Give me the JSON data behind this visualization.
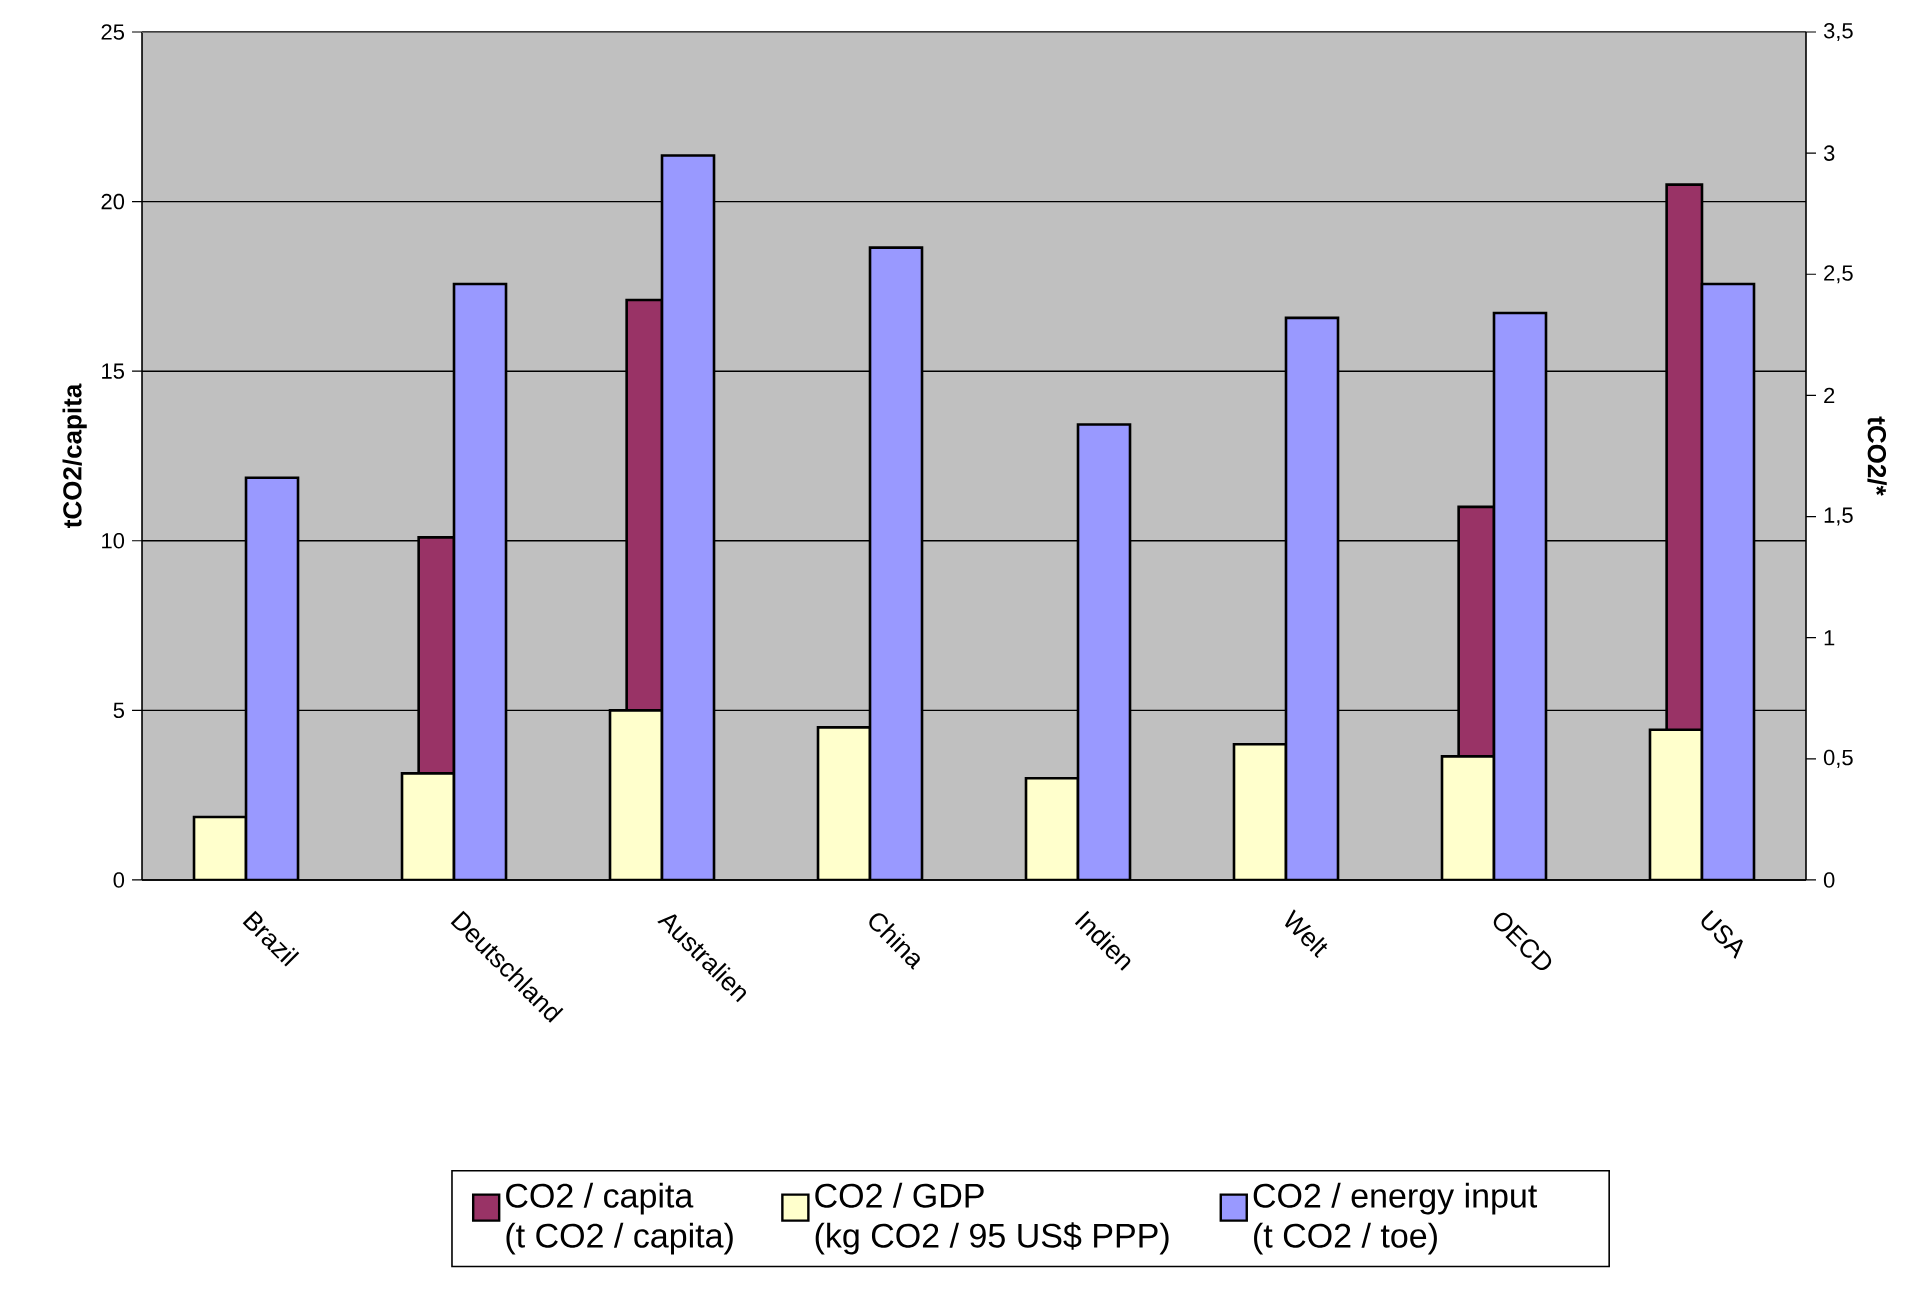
{
  "chart_data": {
    "type": "bar",
    "categories": [
      "Brazil",
      "Deutschland",
      "Australien",
      "China",
      "Indien",
      "Welt",
      "OECD",
      "USA"
    ],
    "series": [
      {
        "name": "CO2 / capita (t CO2 / capita)",
        "color": "#993366",
        "values": [
          null,
          10.1,
          17.1,
          null,
          null,
          null,
          11.0,
          20.5
        ]
      },
      {
        "name": "CO2 / GDP (kg CO2 / 95 US$ PPP)",
        "color": "#ffffcc",
        "axis": "y2",
        "values": [
          0.26,
          0.44,
          0.7,
          0.63,
          0.42,
          0.56,
          0.51,
          0.62
        ]
      },
      {
        "name": "CO2 / energy input (t CO2 / toe)",
        "color": "#9999ff",
        "axis": "y2",
        "values": [
          1.66,
          2.46,
          2.99,
          2.61,
          1.88,
          2.32,
          2.34,
          2.46
        ]
      }
    ],
    "ylabel": "tCO2/capita",
    "y2label": "tCO2/*",
    "ylim": [
      0,
      25
    ],
    "yticks": [
      0,
      5,
      10,
      15,
      20,
      25
    ],
    "y2lim": [
      0,
      3.5
    ],
    "y2ticks": [
      0,
      {
        "value": 0.5,
        "label": "0,5"
      },
      1,
      {
        "value": 1.5,
        "label": "1,5"
      },
      2,
      {
        "value": 2.5,
        "label": "2,5"
      },
      3,
      {
        "value": 3.5,
        "label": "3,5"
      }
    ],
    "grid": "y",
    "legend": "bottom"
  }
}
